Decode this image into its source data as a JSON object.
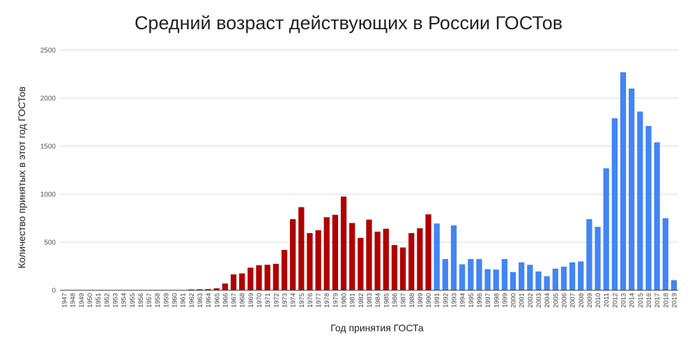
{
  "chart_data": {
    "type": "bar",
    "title": "Средний возраст действующих в России ГОСТов",
    "xlabel": "Год принятия ГОСТа",
    "ylabel": "Количество принятых в этот год ГОСТов",
    "ylim": [
      0,
      2500
    ],
    "yticks": [
      0,
      500,
      1000,
      1500,
      2000,
      2500
    ],
    "grid": true,
    "categories": [
      "1947",
      "1948",
      "1949",
      "1950",
      "1951",
      "1952",
      "1953",
      "1954",
      "1955",
      "1956",
      "1957",
      "1958",
      "1959",
      "1960",
      "1961",
      "1962",
      "1963",
      "1964",
      "1965",
      "1966",
      "1967",
      "1968",
      "1969",
      "1970",
      "1971",
      "1972",
      "1973",
      "1974",
      "1975",
      "1976",
      "1977",
      "1978",
      "1979",
      "1980",
      "1981",
      "1982",
      "1983",
      "1984",
      "1985",
      "1986",
      "1987",
      "1988",
      "1989",
      "1990",
      "1991",
      "1992",
      "1993",
      "1994",
      "1995",
      "1996",
      "1997",
      "1998",
      "1999",
      "2000",
      "2001",
      "2002",
      "2003",
      "2004",
      "2005",
      "2006",
      "2007",
      "2008",
      "2009",
      "2010",
      "2011",
      "2012",
      "2013",
      "2014",
      "2015",
      "2016",
      "2017",
      "2018",
      "2019"
    ],
    "values": [
      1,
      1,
      1,
      1,
      1,
      1,
      1,
      1,
      1,
      1,
      1,
      1,
      1,
      1,
      2,
      8,
      10,
      12,
      20,
      70,
      165,
      175,
      235,
      260,
      265,
      275,
      420,
      740,
      865,
      595,
      625,
      760,
      785,
      975,
      700,
      545,
      735,
      610,
      640,
      470,
      445,
      595,
      645,
      790,
      695,
      325,
      675,
      270,
      325,
      325,
      220,
      215,
      325,
      190,
      290,
      265,
      195,
      145,
      225,
      245,
      290,
      300,
      740,
      660,
      1270,
      1790,
      2270,
      2100,
      1860,
      1710,
      1540,
      750,
      105
    ],
    "colors": [
      "#b00000",
      "#b00000",
      "#b00000",
      "#b00000",
      "#b00000",
      "#b00000",
      "#b00000",
      "#b00000",
      "#b00000",
      "#b00000",
      "#b00000",
      "#b00000",
      "#b00000",
      "#b00000",
      "#b00000",
      "#b00000",
      "#b00000",
      "#b00000",
      "#b00000",
      "#b00000",
      "#b00000",
      "#b00000",
      "#b00000",
      "#b00000",
      "#b00000",
      "#b00000",
      "#b00000",
      "#b00000",
      "#b00000",
      "#b00000",
      "#b00000",
      "#b00000",
      "#b00000",
      "#b00000",
      "#b00000",
      "#b00000",
      "#b00000",
      "#b00000",
      "#b00000",
      "#b00000",
      "#b00000",
      "#b00000",
      "#b00000",
      "#b00000",
      "#4285f4",
      "#4285f4",
      "#4285f4",
      "#4285f4",
      "#4285f4",
      "#4285f4",
      "#4285f4",
      "#4285f4",
      "#4285f4",
      "#4285f4",
      "#4285f4",
      "#4285f4",
      "#4285f4",
      "#4285f4",
      "#4285f4",
      "#4285f4",
      "#4285f4",
      "#4285f4",
      "#4285f4",
      "#4285f4",
      "#4285f4",
      "#4285f4",
      "#4285f4",
      "#4285f4",
      "#4285f4",
      "#4285f4",
      "#4285f4",
      "#4285f4",
      "#4285f4"
    ]
  }
}
